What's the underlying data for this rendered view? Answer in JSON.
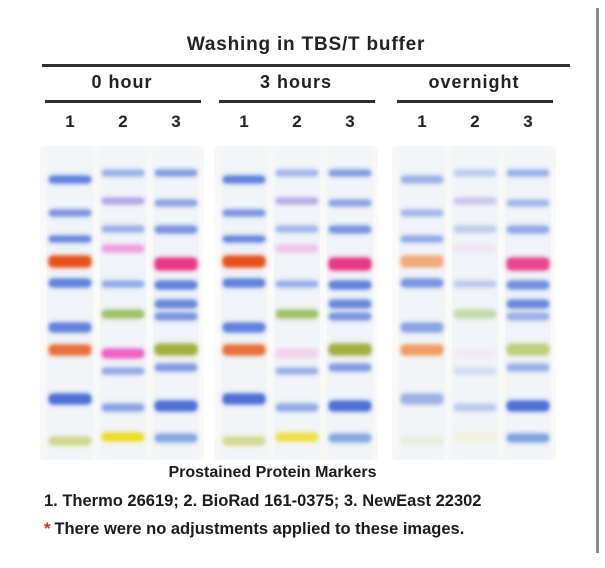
{
  "title": "Washing in TBS/T buffer",
  "lane_numbers": [
    "1",
    "2",
    "3"
  ],
  "footer": {
    "caption": "Prostained Protein Markers",
    "legend": "1. Thermo 26619; 2. BioRad 161-0375; 3. NewEast 22302",
    "note_marker": "*",
    "note_marker_color": "#e8211d",
    "note": "There were no adjustments applied to these images."
  },
  "gel": {
    "band_format": "[top_px_in_gel, height_px, color_hex, intensity_opacity]",
    "panels": [
      {
        "label": "0 hour",
        "lanes": [
          {
            "number": "1",
            "marker": "Thermo 26619",
            "bands": [
              [
                30,
                7,
                "#4a6fd8",
                0.85
              ],
              [
                64,
                6,
                "#4a6fd8",
                0.7
              ],
              [
                90,
                6,
                "#4a6fd8",
                0.8
              ],
              [
                110,
                11,
                "#e8511b",
                1.0
              ],
              [
                133,
                8,
                "#4a6fd8",
                0.85
              ],
              [
                177,
                9,
                "#4a6fd8",
                0.85
              ],
              [
                199,
                10,
                "#e76b33",
                0.95
              ],
              [
                248,
                10,
                "#3e63d2",
                0.9
              ],
              [
                291,
                8,
                "#ccd37e",
                0.85
              ]
            ]
          },
          {
            "number": "2",
            "marker": "BioRad 161-0375",
            "bands": [
              [
                24,
                6,
                "#4a6fd8",
                0.5
              ],
              [
                52,
                6,
                "#9c86e0",
                0.7
              ],
              [
                80,
                6,
                "#4a6fd8",
                0.5
              ],
              [
                99,
                7,
                "#ef8cd9",
                0.8
              ],
              [
                135,
                6,
                "#4a6fd8",
                0.55
              ],
              [
                164,
                8,
                "#8db648",
                0.8
              ],
              [
                203,
                9,
                "#f055c0",
                0.9
              ],
              [
                222,
                6,
                "#4a6fd8",
                0.55
              ],
              [
                258,
                7,
                "#4a6fd8",
                0.6
              ],
              [
                287,
                8,
                "#eeda1e",
                0.95
              ]
            ]
          },
          {
            "number": "3",
            "marker": "NewEast 22302",
            "bands": [
              [
                24,
                6,
                "#4a6fd8",
                0.65
              ],
              [
                54,
                6,
                "#4a6fd8",
                0.6
              ],
              [
                80,
                7,
                "#4a6fd8",
                0.7
              ],
              [
                112,
                12,
                "#e62f80",
                0.95
              ],
              [
                135,
                8,
                "#4a6fd8",
                0.85
              ],
              [
                154,
                8,
                "#4a6fd8",
                0.8
              ],
              [
                167,
                7,
                "#4a6fd8",
                0.7
              ],
              [
                198,
                11,
                "#9aab2f",
                0.9
              ],
              [
                218,
                7,
                "#4a6fd8",
                0.65
              ],
              [
                255,
                10,
                "#3e63d2",
                0.9
              ],
              [
                288,
                8,
                "#6f96dc",
                0.8
              ]
            ]
          }
        ]
      },
      {
        "label": "3 hours",
        "lanes": [
          {
            "number": "1",
            "marker": "Thermo 26619",
            "bands": [
              [
                30,
                7,
                "#4a6fd8",
                0.85
              ],
              [
                64,
                6,
                "#4a6fd8",
                0.7
              ],
              [
                90,
                6,
                "#4a6fd8",
                0.8
              ],
              [
                110,
                11,
                "#e8511b",
                1.0
              ],
              [
                133,
                8,
                "#4a6fd8",
                0.85
              ],
              [
                177,
                9,
                "#4a6fd8",
                0.85
              ],
              [
                199,
                10,
                "#e76b33",
                0.95
              ],
              [
                248,
                10,
                "#3e63d2",
                0.9
              ],
              [
                291,
                8,
                "#ccd37e",
                0.8
              ]
            ]
          },
          {
            "number": "2",
            "marker": "BioRad 161-0375",
            "bands": [
              [
                24,
                6,
                "#4a6fd8",
                0.45
              ],
              [
                52,
                6,
                "#9c86e0",
                0.65
              ],
              [
                80,
                6,
                "#4a6fd8",
                0.45
              ],
              [
                99,
                7,
                "#ef8cd9",
                0.45
              ],
              [
                135,
                6,
                "#4a6fd8",
                0.5
              ],
              [
                164,
                8,
                "#8db648",
                0.8
              ],
              [
                203,
                9,
                "#f055c0",
                0.2
              ],
              [
                222,
                6,
                "#4a6fd8",
                0.5
              ],
              [
                258,
                7,
                "#4a6fd8",
                0.55
              ],
              [
                287,
                8,
                "#eeda1e",
                0.8
              ]
            ]
          },
          {
            "number": "3",
            "marker": "NewEast 22302",
            "bands": [
              [
                24,
                6,
                "#4a6fd8",
                0.65
              ],
              [
                54,
                6,
                "#4a6fd8",
                0.6
              ],
              [
                80,
                7,
                "#4a6fd8",
                0.7
              ],
              [
                112,
                12,
                "#e62f80",
                0.95
              ],
              [
                135,
                8,
                "#4a6fd8",
                0.85
              ],
              [
                154,
                8,
                "#4a6fd8",
                0.8
              ],
              [
                167,
                7,
                "#4a6fd8",
                0.7
              ],
              [
                198,
                11,
                "#9aab2f",
                0.9
              ],
              [
                218,
                7,
                "#4a6fd8",
                0.65
              ],
              [
                255,
                10,
                "#3e63d2",
                0.9
              ],
              [
                288,
                8,
                "#6f96dc",
                0.8
              ]
            ]
          }
        ]
      },
      {
        "label": "overnight",
        "lanes": [
          {
            "number": "1",
            "marker": "Thermo 26619",
            "bands": [
              [
                30,
                7,
                "#4a6fd8",
                0.5
              ],
              [
                64,
                6,
                "#4a6fd8",
                0.45
              ],
              [
                90,
                6,
                "#4a6fd8",
                0.55
              ],
              [
                110,
                11,
                "#f2a876",
                0.95
              ],
              [
                133,
                8,
                "#4a6fd8",
                0.7
              ],
              [
                177,
                9,
                "#4a6fd8",
                0.6
              ],
              [
                199,
                10,
                "#f09a5c",
                0.95
              ],
              [
                248,
                10,
                "#3e63d2",
                0.45
              ],
              [
                291,
                8,
                "#ccd37e",
                0.2
              ]
            ]
          },
          {
            "number": "2",
            "marker": "BioRad 161-0375",
            "bands": [
              [
                24,
                6,
                "#4a6fd8",
                0.3
              ],
              [
                52,
                6,
                "#9c86e0",
                0.42
              ],
              [
                80,
                6,
                "#4a6fd8",
                0.3
              ],
              [
                99,
                7,
                "#ef8cd9",
                0.15
              ],
              [
                135,
                6,
                "#4a6fd8",
                0.3
              ],
              [
                164,
                8,
                "#8db648",
                0.42
              ],
              [
                203,
                9,
                "#f055c0",
                0.06
              ],
              [
                222,
                6,
                "#4a6fd8",
                0.18
              ],
              [
                258,
                7,
                "#4a6fd8",
                0.3
              ],
              [
                287,
                8,
                "#eeda1e",
                0.12
              ]
            ]
          },
          {
            "number": "3",
            "marker": "NewEast 22302",
            "bands": [
              [
                24,
                6,
                "#4a6fd8",
                0.5
              ],
              [
                54,
                6,
                "#4a6fd8",
                0.45
              ],
              [
                80,
                7,
                "#4a6fd8",
                0.55
              ],
              [
                112,
                12,
                "#e62f80",
                0.88
              ],
              [
                135,
                8,
                "#4a6fd8",
                0.75
              ],
              [
                154,
                8,
                "#4a6fd8",
                0.8
              ],
              [
                167,
                7,
                "#4a6fd8",
                0.5
              ],
              [
                198,
                11,
                "#b5c75f",
                0.8
              ],
              [
                218,
                7,
                "#4a6fd8",
                0.5
              ],
              [
                255,
                10,
                "#3e63d2",
                0.9
              ],
              [
                288,
                8,
                "#6f96dc",
                0.85
              ]
            ]
          }
        ]
      }
    ]
  }
}
